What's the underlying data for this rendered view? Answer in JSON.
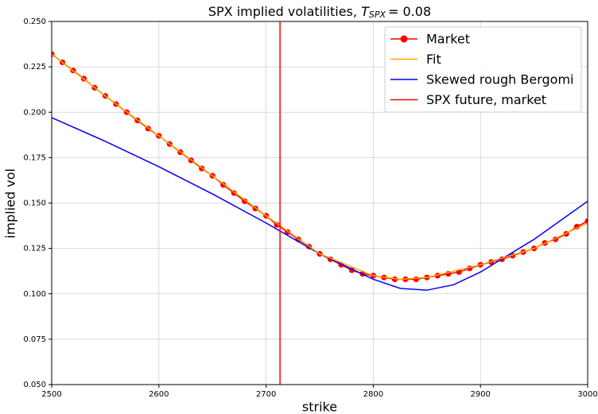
{
  "chart_data": {
    "type": "line",
    "title": {
      "text": "SPX implied volatilities, ",
      "symbol": "T",
      "subscript": "SPX",
      "suffix": "=  0.08"
    },
    "xlabel": "strike",
    "ylabel": "implied vol",
    "xlim": [
      2500,
      3000
    ],
    "xticks": [
      2500,
      2600,
      2700,
      2800,
      2900,
      3000
    ],
    "ylim": [
      0.05,
      0.25
    ],
    "yticks": [
      {
        "value": 0.05,
        "label": "0.050"
      },
      {
        "value": 0.075,
        "label": "0.075"
      },
      {
        "value": 0.1,
        "label": "0.100"
      },
      {
        "value": 0.125,
        "label": "0.125"
      },
      {
        "value": 0.15,
        "label": "0.150"
      },
      {
        "value": 0.175,
        "label": "0.175"
      },
      {
        "value": 0.2,
        "label": "0.200"
      },
      {
        "value": 0.225,
        "label": "0.225"
      },
      {
        "value": 0.25,
        "label": "0.250"
      }
    ],
    "grid": true,
    "legend": "upper right",
    "series": [
      {
        "name": "Market",
        "color": "#ff0000",
        "markers": true,
        "x": [
          2500,
          2510,
          2520,
          2530,
          2540,
          2550,
          2560,
          2570,
          2580,
          2590,
          2600,
          2610,
          2620,
          2630,
          2640,
          2650,
          2660,
          2670,
          2680,
          2690,
          2700,
          2710,
          2720,
          2730,
          2740,
          2750,
          2760,
          2770,
          2780,
          2790,
          2800,
          2810,
          2820,
          2830,
          2840,
          2850,
          2860,
          2870,
          2880,
          2890,
          2900,
          2910,
          2920,
          2930,
          2940,
          2950,
          2960,
          2970,
          2980,
          2990,
          3000
        ],
        "values": [
          0.232,
          0.2275,
          0.223,
          0.2185,
          0.2135,
          0.209,
          0.2045,
          0.2,
          0.1955,
          0.191,
          0.187,
          0.1825,
          0.178,
          0.1735,
          0.169,
          0.165,
          0.16,
          0.1555,
          0.151,
          0.147,
          0.143,
          0.138,
          0.134,
          0.13,
          0.126,
          0.122,
          0.119,
          0.116,
          0.113,
          0.111,
          0.11,
          0.109,
          0.108,
          0.108,
          0.108,
          0.109,
          0.11,
          0.111,
          0.112,
          0.114,
          0.116,
          0.1175,
          0.119,
          0.121,
          0.123,
          0.125,
          0.128,
          0.13,
          0.133,
          0.137,
          0.14
        ]
      },
      {
        "name": "Fit",
        "color": "#ffa500",
        "markers": false,
        "x": [
          2500,
          2550,
          2600,
          2650,
          2700,
          2750,
          2800,
          2825,
          2850,
          2900,
          2950,
          3000
        ],
        "values": [
          0.232,
          0.209,
          0.187,
          0.165,
          0.143,
          0.122,
          0.11,
          0.108,
          0.109,
          0.116,
          0.125,
          0.139
        ]
      },
      {
        "name": "Skewed rough Bergomi",
        "color": "#0000ff",
        "markers": false,
        "x": [
          2500,
          2550,
          2600,
          2650,
          2700,
          2750,
          2800,
          2825,
          2850,
          2875,
          2900,
          2950,
          3000
        ],
        "values": [
          0.197,
          0.184,
          0.17,
          0.155,
          0.139,
          0.122,
          0.108,
          0.103,
          0.102,
          0.105,
          0.112,
          0.13,
          0.151
        ]
      }
    ],
    "vline": {
      "name": "SPX future, market",
      "color": "#ff0000",
      "x": 2713
    }
  }
}
